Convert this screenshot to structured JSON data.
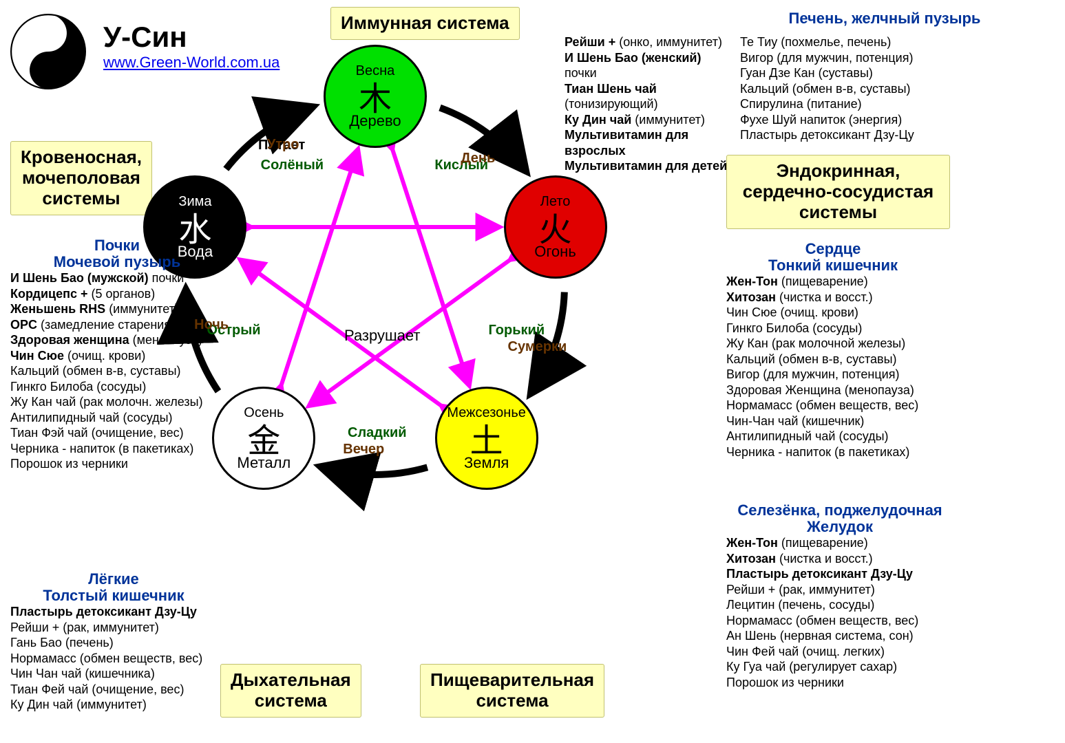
{
  "page": {
    "title": "У-Син",
    "url": "www.Green-World.com.ua",
    "background_color": "#ffffff"
  },
  "colors": {
    "box_bg": "#ffffc0",
    "box_border": "#c0c070",
    "organ_head": "#003399",
    "ring_arrow": "#000000",
    "star_arrow": "#ff00ff",
    "edge_taste": "#005a00",
    "edge_time": "#663300"
  },
  "diagram": {
    "ring_label": "Питает",
    "star_label": "Разрушает",
    "ring_radius": 275,
    "circle_radius": 75,
    "elements": [
      {
        "id": "wood",
        "season": "Весна",
        "hanzi": "木",
        "ru": "Дерево",
        "fill": "#00e000",
        "fg": "#000000",
        "angle": -90
      },
      {
        "id": "fire",
        "season": "Лето",
        "hanzi": "火",
        "ru": "Огонь",
        "fill": "#e00000",
        "fg": "#000000",
        "angle": -18
      },
      {
        "id": "earth",
        "season": "Межсезонье",
        "hanzi": "土",
        "ru": "Земля",
        "fill": "#ffff00",
        "fg": "#000000",
        "angle": 54
      },
      {
        "id": "metal",
        "season": "Осень",
        "hanzi": "金",
        "ru": "Металл",
        "fill": "#ffffff",
        "fg": "#000000",
        "angle": 126
      },
      {
        "id": "water",
        "season": "Зима",
        "hanzi": "水",
        "ru": "Вода",
        "fill": "#000000",
        "fg": "#ffffff",
        "angle": 198
      }
    ],
    "edge_tastes": [
      {
        "between": [
          "water",
          "wood"
        ],
        "text": "Солёный"
      },
      {
        "between": [
          "wood",
          "fire"
        ],
        "text": "Кислый"
      },
      {
        "between": [
          "fire",
          "earth"
        ],
        "text": "Горький"
      },
      {
        "between": [
          "earth",
          "metal"
        ],
        "text": "Сладкий"
      },
      {
        "between": [
          "metal",
          "water"
        ],
        "text": "Острый"
      }
    ],
    "edge_times": [
      {
        "near": "wood",
        "text": "Утро"
      },
      {
        "near": "fire",
        "text": "День"
      },
      {
        "near": "earth",
        "text": "Сумерки"
      },
      {
        "near": "metal",
        "text": "Вечер"
      },
      {
        "near": "water",
        "text": "Ночь"
      }
    ]
  },
  "systems": {
    "wood": {
      "label": "Иммунная система"
    },
    "fire": {
      "label": "Эндокринная,\nсердечно-сосудистая\nсистемы"
    },
    "earth": {
      "label": "Пищеварительная\nсистема"
    },
    "metal": {
      "label": "Дыхательная\nсистема"
    },
    "water": {
      "label": "Кровеносная,\nмочеполовая\nсистемы"
    }
  },
  "organs": {
    "wood": "Печень, желчный пузырь",
    "fire": "Сердце\nТонкий кишечник",
    "earth": "Селезёнка, поджелудочная\nЖелудок",
    "metal": "Лёгкие\nТолстый кишечник",
    "water": "Почки\nМочевой пузырь"
  },
  "products": {
    "wood_left": [
      {
        "b": "Рейши +",
        "t": " (онко, иммунитет)"
      },
      {
        "b": "И Шень Бао (женский)",
        "t": " почки"
      },
      {
        "b": "Тиан Шень чай",
        "t": " (тонизирующий)"
      },
      {
        "b": "Ку Дин чай",
        "t": " (иммунитет)"
      },
      {
        "b": "Мультивитамин для взрослых",
        "t": ""
      },
      {
        "b": "Мультивитамин для детей",
        "t": ""
      }
    ],
    "wood_right": [
      {
        "t": "Те Тиу (похмелье, печень)"
      },
      {
        "t": "Вигор (для мужчин, потенция)"
      },
      {
        "t": "Гуан Дзе Кан (суставы)"
      },
      {
        "t": "Кальций (обмен в-в, суставы)"
      },
      {
        "t": "Спирулина (питание)"
      },
      {
        "t": "Фухе Шуй напиток (энергия)"
      },
      {
        "t": "Пластырь детоксикант Дзу-Цу"
      }
    ],
    "fire": [
      {
        "b": "Жен-Тон",
        "t": " (пищеварение)"
      },
      {
        "b": "Хитозан",
        "t": " (чистка и восст.)"
      },
      {
        "t": "Чин Сюе (очищ. крови)"
      },
      {
        "t": "Гинкго Билоба (сосуды)"
      },
      {
        "t": "Жу Кан (рак молочной железы)"
      },
      {
        "t": "Кальций (обмен в-в, суставы)"
      },
      {
        "t": "Вигор (для мужчин, потенция)"
      },
      {
        "t": "Здоровая Женщина (менопауза)"
      },
      {
        "t": "Нормамасс (обмен веществ, вес)"
      },
      {
        "t": "Чин-Чан чай (кишечник)"
      },
      {
        "t": "Антилипидный чай (сосуды)"
      },
      {
        "t": "Черника - напиток (в пакетиках)"
      }
    ],
    "earth": [
      {
        "b": "Жен-Тон",
        "t": " (пищеварение)"
      },
      {
        "b": "Хитозан",
        "t": " (чистка и восст.)"
      },
      {
        "b": "Пластырь детоксикант Дзу-Цу",
        "t": ""
      },
      {
        "t": "Рейши + (рак, иммунитет)"
      },
      {
        "t": "Лецитин (печень, сосуды)"
      },
      {
        "t": "Нормамасс (обмен веществ, вес)"
      },
      {
        "t": "Ан Шень (нервная система, сон)"
      },
      {
        "t": "Чин Фей чай (очищ. легких)"
      },
      {
        "t": "Ку Гуа чай (регулирует сахар)"
      },
      {
        "t": "Порошок из черники"
      }
    ],
    "metal": [
      {
        "b": "Пластырь детоксикант Дзу-Цу",
        "t": ""
      },
      {
        "t": "Рейши + (рак, иммунитет)"
      },
      {
        "t": "Гань Бао (печень)"
      },
      {
        "t": "Нормамасс (обмен веществ, вес)"
      },
      {
        "t": "Чин Чан чай (кишечника)"
      },
      {
        "t": "Тиан Фей чай (очищение, вес)"
      },
      {
        "t": "Ку Дин чай (иммунитет)"
      }
    ],
    "water": [
      {
        "b": "И Шень Бао (мужской)",
        "t": " почки"
      },
      {
        "b": "Кордицепс +",
        "t": " (5 органов)"
      },
      {
        "b": "Женьшень RHS",
        "t": " (иммунитет)"
      },
      {
        "b": "OPC",
        "t": " (замедление старения)"
      },
      {
        "b": "Здоровая женщина",
        "t": " (менопауза)"
      },
      {
        "b": "Чин Сюе",
        "t": " (очищ. крови)"
      },
      {
        "t": "Кальций (обмен в-в, суставы)"
      },
      {
        "t": "Гинкго Билоба (сосуды)"
      },
      {
        "t": "Жу Кан чай (рак молочн. железы)"
      },
      {
        "t": "Антилипидный чай (сосуды)"
      },
      {
        "t": "Тиан Фэй чай (очищение, вес)"
      },
      {
        "t": "Черника - напиток (в пакетиках)"
      },
      {
        "t": "Порошок из черники"
      }
    ]
  }
}
